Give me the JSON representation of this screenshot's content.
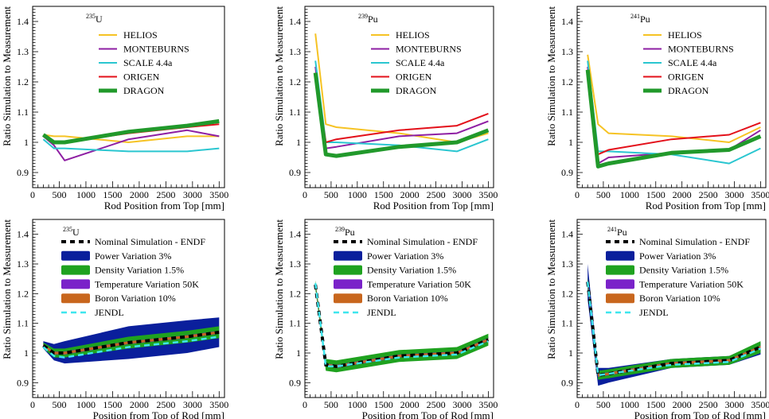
{
  "colors": {
    "HELIOS": "#f6c324",
    "MONTEBURNS": "#8e1fa3",
    "SCALE 4.4a": "#2ac6d0",
    "ORIGEN": "#e3101a",
    "DRAGON": "#21992b",
    "nominal": "#000000",
    "power_band": "#0a1f9c",
    "density_band": "#1fa21f",
    "temperature_band": "#7a22c9",
    "boron_band": "#c8661d",
    "jendl": "#3ee6ee"
  },
  "chart_data": [
    {
      "id": "top-u235",
      "type": "line",
      "title_sup": "235",
      "title_main": "U",
      "xlabel": "Rod Position from Top [mm]",
      "ylabel": "Ratio Simulation to Measurement",
      "xlim": [
        0,
        3600
      ],
      "ylim": [
        0.85,
        1.45
      ],
      "xticks": [
        0,
        500,
        1000,
        1500,
        2000,
        2500,
        3000,
        3500
      ],
      "yticks": [
        0.9,
        1,
        1.1,
        1.2,
        1.3,
        1.4
      ],
      "series": [
        {
          "name": "HELIOS",
          "x": [
            200,
            400,
            600,
            1800,
            2900,
            3500
          ],
          "y": [
            1.025,
            1.02,
            1.02,
            1.0,
            1.02,
            1.02
          ]
        },
        {
          "name": "MONTEBURNS",
          "x": [
            200,
            400,
            600,
            1800,
            2900,
            3500
          ],
          "y": [
            1.02,
            0.99,
            0.94,
            1.01,
            1.04,
            1.02
          ]
        },
        {
          "name": "SCALE 4.4a",
          "x": [
            200,
            400,
            600,
            1800,
            2900,
            3500
          ],
          "y": [
            1.01,
            0.98,
            0.98,
            0.97,
            0.97,
            0.98
          ]
        },
        {
          "name": "ORIGEN",
          "x": [
            200,
            400,
            600,
            1800,
            2900,
            3500
          ],
          "y": [
            1.02,
            1.0,
            1.0,
            1.03,
            1.05,
            1.06
          ]
        },
        {
          "name": "DRAGON",
          "x": [
            200,
            400,
            600,
            1800,
            2900,
            3500
          ],
          "y": [
            1.025,
            1.0,
            1.0,
            1.035,
            1.055,
            1.07
          ]
        }
      ]
    },
    {
      "id": "top-pu239",
      "type": "line",
      "title_sup": "239",
      "title_main": "Pu",
      "xlabel": "Rod Position from Top [mm]",
      "ylabel": "Ratio Simulation to Measurement",
      "xlim": [
        0,
        3600
      ],
      "ylim": [
        0.85,
        1.45
      ],
      "xticks": [
        0,
        500,
        1000,
        1500,
        2000,
        2500,
        3000,
        3500
      ],
      "yticks": [
        0.9,
        1,
        1.1,
        1.2,
        1.3,
        1.4
      ],
      "series": [
        {
          "name": "HELIOS",
          "x": [
            200,
            400,
            600,
            1800,
            2900,
            3500
          ],
          "y": [
            1.36,
            1.06,
            1.05,
            1.03,
            1.0,
            1.03
          ]
        },
        {
          "name": "MONTEBURNS",
          "x": [
            200,
            400,
            600,
            1800,
            2900,
            3500
          ],
          "y": [
            1.25,
            0.98,
            0.985,
            1.02,
            1.03,
            1.07
          ]
        },
        {
          "name": "SCALE 4.4a",
          "x": [
            200,
            400,
            600,
            1800,
            2900,
            3500
          ],
          "y": [
            1.27,
            1.0,
            1.0,
            0.99,
            0.97,
            1.01
          ]
        },
        {
          "name": "ORIGEN",
          "x": [
            200,
            400,
            600,
            1800,
            2900,
            3500
          ],
          "y": [
            1.23,
            1.0,
            1.01,
            1.04,
            1.055,
            1.095
          ]
        },
        {
          "name": "DRAGON",
          "x": [
            200,
            400,
            600,
            1800,
            2900,
            3500
          ],
          "y": [
            1.23,
            0.96,
            0.955,
            0.985,
            1.0,
            1.04
          ]
        }
      ]
    },
    {
      "id": "top-pu241",
      "type": "line",
      "title_sup": "241",
      "title_main": "Pu",
      "xlabel": "Rod Position from Top [mm]",
      "ylabel": "Ratio Simulation to Measurement",
      "xlim": [
        0,
        3600
      ],
      "ylim": [
        0.85,
        1.45
      ],
      "xticks": [
        0,
        500,
        1000,
        1500,
        2000,
        2500,
        3000,
        3500
      ],
      "yticks": [
        0.9,
        1,
        1.1,
        1.2,
        1.3,
        1.4
      ],
      "series": [
        {
          "name": "HELIOS",
          "x": [
            200,
            400,
            600,
            1800,
            2900,
            3500
          ],
          "y": [
            1.29,
            1.06,
            1.03,
            1.02,
            1.0,
            1.05
          ]
        },
        {
          "name": "MONTEBURNS",
          "x": [
            200,
            400,
            600,
            1800,
            2900,
            3500
          ],
          "y": [
            1.25,
            0.93,
            0.95,
            0.965,
            0.975,
            1.04
          ]
        },
        {
          "name": "SCALE 4.4a",
          "x": [
            200,
            400,
            600,
            1800,
            2900,
            3500
          ],
          "y": [
            1.27,
            0.97,
            0.97,
            0.96,
            0.93,
            0.98
          ]
        },
        {
          "name": "ORIGEN",
          "x": [
            200,
            400,
            600,
            1800,
            2900,
            3500
          ],
          "y": [
            1.24,
            0.96,
            0.975,
            1.01,
            1.025,
            1.065
          ]
        },
        {
          "name": "DRAGON",
          "x": [
            200,
            400,
            600,
            1800,
            2900,
            3500
          ],
          "y": [
            1.24,
            0.92,
            0.93,
            0.965,
            0.975,
            1.02
          ]
        }
      ]
    },
    {
      "id": "bottom-u235",
      "type": "area",
      "title_sup": "235",
      "title_main": "U",
      "xlabel": "Position from Top of Rod [mm]",
      "ylabel": "Ratio Simulation to Measurement",
      "xlim": [
        0,
        3600
      ],
      "ylim": [
        0.85,
        1.45
      ],
      "xticks": [
        0,
        500,
        1000,
        1500,
        2000,
        2500,
        3000,
        3500
      ],
      "yticks": [
        0.9,
        1,
        1.1,
        1.2,
        1.3,
        1.4
      ],
      "x": [
        200,
        400,
        600,
        1800,
        2900,
        3500
      ],
      "nominal": [
        1.025,
        1.0,
        1.0,
        1.035,
        1.055,
        1.07
      ],
      "bands": [
        {
          "name": "Power Variation 3%",
          "lower": [
            1.015,
            0.975,
            0.965,
            0.98,
            1.0,
            1.02
          ],
          "upper": [
            1.04,
            1.03,
            1.04,
            1.09,
            1.11,
            1.12
          ]
        },
        {
          "name": "Density Variation 1.5%",
          "lower": [
            1.015,
            0.985,
            0.985,
            1.015,
            1.035,
            1.05
          ],
          "upper": [
            1.035,
            1.015,
            1.015,
            1.055,
            1.075,
            1.09
          ]
        },
        {
          "name": "Temperature Variation 50K",
          "lower": [
            1.02,
            0.995,
            0.995,
            1.03,
            1.05,
            1.065
          ],
          "upper": [
            1.03,
            1.005,
            1.005,
            1.04,
            1.06,
            1.075
          ]
        },
        {
          "name": "Boron Variation 10%",
          "lower": [
            1.02,
            0.996,
            0.996,
            1.031,
            1.051,
            1.066
          ],
          "upper": [
            1.03,
            1.004,
            1.004,
            1.039,
            1.059,
            1.074
          ]
        }
      ],
      "jendl": [
        1.02,
        0.99,
        0.985,
        1.02,
        1.04,
        1.055
      ],
      "legend": [
        "Nominal Simulation - ENDF",
        "Power Variation 3%",
        "Density Variation 1.5%",
        "Temperature Variation 50K",
        "Boron Variation 10%",
        "JENDL"
      ]
    },
    {
      "id": "bottom-pu239",
      "type": "area",
      "title_sup": "239",
      "title_main": "Pu",
      "xlabel": "Position from Top of Rod [mm]",
      "ylabel": "Ratio Simulation to Measurement",
      "xlim": [
        0,
        3600
      ],
      "ylim": [
        0.85,
        1.45
      ],
      "xticks": [
        0,
        500,
        1000,
        1500,
        2000,
        2500,
        3000,
        3500
      ],
      "yticks": [
        0.9,
        1,
        1.1,
        1.2,
        1.3,
        1.4
      ],
      "x": [
        200,
        400,
        600,
        1800,
        2900,
        3500
      ],
      "nominal": [
        1.23,
        0.96,
        0.955,
        0.99,
        1.0,
        1.045
      ],
      "bands": [
        {
          "name": "Power Variation 3%",
          "lower": [
            1.225,
            0.95,
            0.945,
            0.98,
            0.99,
            1.035
          ],
          "upper": [
            1.235,
            0.97,
            0.965,
            1.0,
            1.01,
            1.055
          ]
        },
        {
          "name": "Density Variation 1.5%",
          "lower": [
            1.215,
            0.94,
            0.935,
            0.97,
            0.98,
            1.025
          ],
          "upper": [
            1.245,
            0.98,
            0.975,
            1.01,
            1.02,
            1.065
          ]
        },
        {
          "name": "Temperature Variation 50K",
          "lower": [
            1.227,
            0.955,
            0.95,
            0.985,
            0.995,
            1.04
          ],
          "upper": [
            1.233,
            0.965,
            0.96,
            0.995,
            1.005,
            1.05
          ]
        },
        {
          "name": "Boron Variation 10%",
          "lower": [
            1.228,
            0.956,
            0.951,
            0.986,
            0.996,
            1.041
          ],
          "upper": [
            1.232,
            0.964,
            0.959,
            0.994,
            1.004,
            1.049
          ]
        }
      ],
      "jendl": [
        1.235,
        0.955,
        0.955,
        0.985,
        0.995,
        1.04
      ],
      "legend": [
        "Nominal Simulation - ENDF",
        "Power Variation 3%",
        "Density Variation 1.5%",
        "Temperature Variation 50K",
        "Boron Variation 10%",
        "JENDL"
      ]
    },
    {
      "id": "bottom-pu241",
      "type": "area",
      "title_sup": "241",
      "title_main": "Pu",
      "xlabel": "Position from Top of Rod [mm]",
      "ylabel": "Ratio Simulation to Measurement",
      "xlim": [
        0,
        3600
      ],
      "ylim": [
        0.85,
        1.45
      ],
      "xticks": [
        0,
        500,
        1000,
        1500,
        2000,
        2500,
        3000,
        3500
      ],
      "yticks": [
        0.9,
        1,
        1.1,
        1.2,
        1.3,
        1.4
      ],
      "x": [
        200,
        400,
        600,
        1800,
        2900,
        3500
      ],
      "nominal": [
        1.24,
        0.925,
        0.93,
        0.965,
        0.975,
        1.02
      ],
      "bands": [
        {
          "name": "Power Variation 3%",
          "lower": [
            1.18,
            0.89,
            0.9,
            0.95,
            0.96,
            0.995
          ],
          "upper": [
            1.3,
            0.95,
            0.95,
            0.98,
            0.99,
            1.035
          ]
        },
        {
          "name": "Density Variation 1.5%",
          "lower": [
            1.225,
            0.91,
            0.915,
            0.95,
            0.96,
            1.0
          ],
          "upper": [
            1.255,
            0.94,
            0.945,
            0.98,
            0.99,
            1.04
          ]
        },
        {
          "name": "Temperature Variation 50K",
          "lower": [
            1.235,
            0.92,
            0.925,
            0.96,
            0.97,
            1.015
          ],
          "upper": [
            1.245,
            0.93,
            0.935,
            0.97,
            0.98,
            1.025
          ]
        },
        {
          "name": "Boron Variation 10%",
          "lower": [
            1.236,
            0.921,
            0.926,
            0.961,
            0.971,
            1.016
          ],
          "upper": [
            1.244,
            0.929,
            0.934,
            0.969,
            0.979,
            1.024
          ]
        }
      ],
      "jendl": [
        1.24,
        0.925,
        0.93,
        0.96,
        0.97,
        1.015
      ],
      "legend": [
        "Nominal Simulation - ENDF",
        "Power Variation 3%",
        "Density Variation 1.5%",
        "Temperature Variation 50K",
        "Boron Variation 10%",
        "JENDL"
      ]
    }
  ]
}
